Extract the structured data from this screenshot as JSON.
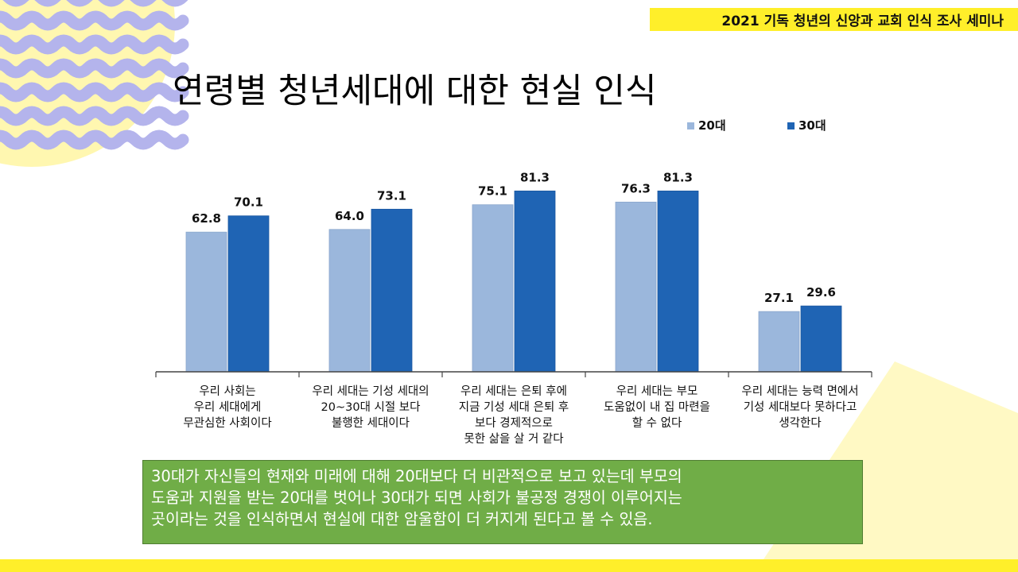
{
  "header": {
    "seminar_title": "2021 기독 청년의 신앙과 교회 인식 조사 세미나"
  },
  "slide": {
    "title": "연령별 청년세대에 대한 현실 인식"
  },
  "chart_data": {
    "type": "bar",
    "title": "",
    "xlabel": "",
    "ylabel": "",
    "ylim": [
      0,
      100
    ],
    "grid": false,
    "legend": "top-right",
    "categories": [
      "우리 사회는\n우리 세대에게\n무관심한 사회이다",
      "우리 세대는 기성 세대의\n20~30대 시절 보다\n불행한 세대이다",
      "우리 세대는 은퇴 후에\n지금 기성 세대 은퇴 후\n보다 경제적으로\n못한 삶을 살 거 같다",
      "우리 세대는 부모\n도움없이 내 집 마련을\n할 수 없다",
      "우리 세대는 능력 면에서\n기성 세대보다 못하다고\n생각한다"
    ],
    "series": [
      {
        "name": "20대",
        "color": "#9bb7dc",
        "values": [
          62.8,
          64.0,
          75.1,
          76.3,
          27.1
        ],
        "labels": [
          "62.8",
          "64.0",
          "75.1",
          "76.3",
          "27.1"
        ]
      },
      {
        "name": "30대",
        "color": "#1f64b4",
        "values": [
          70.1,
          73.1,
          81.3,
          81.3,
          29.6
        ],
        "labels": [
          "70.1",
          "73.1",
          "81.3",
          "81.3",
          "29.6"
        ]
      }
    ]
  },
  "summary": {
    "text": "30대가 자신들의 현재와 미래에 대해 20대보다 더 비관적으로 보고 있는데 부모의\n도움과 지원을 받는 20대를 벗어나 30대가 되면 사회가 불공정 경쟁이 이루어지는\n곳이라는 것을 인식하면서 현실에 대한 암울함이 더 커지게 된다고 볼 수 있음."
  },
  "colors": {
    "accent_yellow": "#ffef2a",
    "wave_purple": "#b4b4ec",
    "wave_yellow": "#fff7b0",
    "summary_green": "#70ad47"
  }
}
